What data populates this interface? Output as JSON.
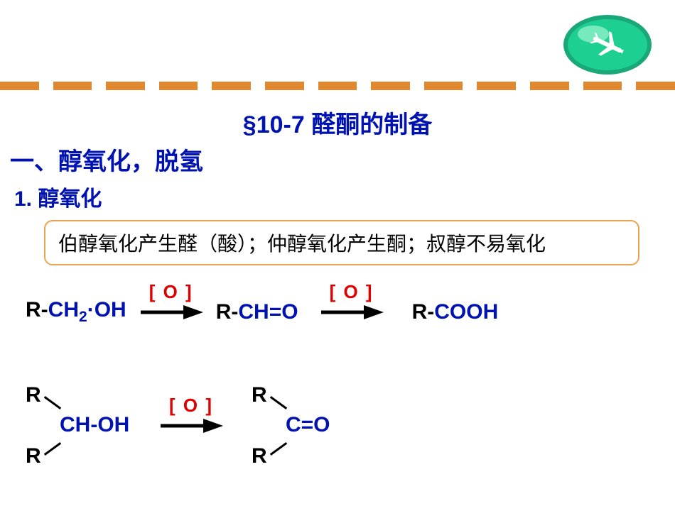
{
  "colors": {
    "blue": "#0012b0",
    "red": "#e00000",
    "black": "#000000",
    "orange_dash": "#e08830",
    "box_border": "#e8a450",
    "badge_green": "#1dcf90",
    "badge_teal": "#1aa87a",
    "badge_highlight": "#9ef5d0"
  },
  "title": "§10-7   醛酮的制备",
  "heading1": "一、醇氧化，脱氢",
  "heading2": "1. 醇氧化",
  "note": "伯醇氧化产生醛（酸）；仲醇氧化产生酮；叔醇不易氧化",
  "oxidant_label": "[ O ]",
  "dash_count": 13,
  "rxn1": {
    "reactant": {
      "r": "R",
      "bond": "-",
      "rest": "CH",
      "sub": "2",
      "dot": "·",
      "oh": "OH"
    },
    "intermediate": {
      "r": "R",
      "bond": "-",
      "ch": "CH",
      "eq": "=",
      "o": "O"
    },
    "product": {
      "r": "R",
      "bond": "-",
      "cooh": "COOH"
    }
  },
  "rxn2": {
    "reactant_center": "CH-OH",
    "product_center": "C=O",
    "r_label": "R"
  },
  "fonts": {
    "title": 34,
    "heading": 34,
    "subheading": 30,
    "note": 28,
    "formula": 30,
    "oxidant": 26
  }
}
